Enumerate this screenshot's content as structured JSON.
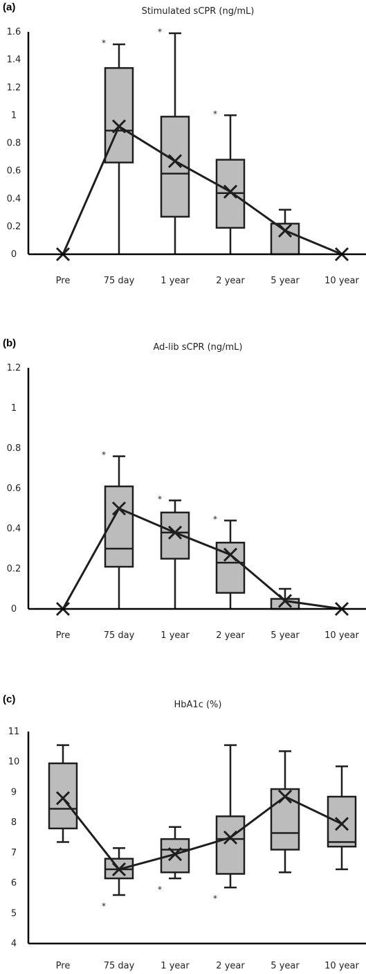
{
  "chart_data": [
    {
      "type": "box",
      "panel_label": "(a)",
      "title": "Stimulated sCPR (ng/mL)",
      "categories": [
        "Pre",
        "75 day",
        "1 year",
        "2 year",
        "5 year",
        "10 year"
      ],
      "ylim": [
        0,
        1.6
      ],
      "yticks": [
        "0",
        "0.2",
        "0.4",
        "0.6",
        "0.8",
        "1",
        "1.2",
        "1.4",
        "1.6"
      ],
      "boxes": [
        {
          "min": 0,
          "q1": 0,
          "median": 0,
          "q3": 0,
          "max": 0,
          "mean": 0,
          "star": ""
        },
        {
          "min": 0,
          "q1": 0.66,
          "median": 0.89,
          "q3": 1.34,
          "max": 1.51,
          "mean": 0.92,
          "star": "*"
        },
        {
          "min": 0,
          "q1": 0.27,
          "median": 0.58,
          "q3": 0.99,
          "max": 1.59,
          "mean": 0.67,
          "star": "*"
        },
        {
          "min": 0,
          "q1": 0.19,
          "median": 0.44,
          "q3": 0.68,
          "max": 1.0,
          "mean": 0.45,
          "star": "*"
        },
        {
          "min": 0,
          "q1": 0,
          "median": 0,
          "q3": 0.22,
          "max": 0.32,
          "mean": 0.17,
          "star": ""
        },
        {
          "min": 0,
          "q1": 0,
          "median": 0,
          "q3": 0,
          "max": 0,
          "mean": 0,
          "star": ""
        }
      ]
    },
    {
      "type": "box",
      "panel_label": "(b)",
      "title": "Ad-lib sCPR (ng/mL)",
      "categories": [
        "Pre",
        "75 day",
        "1 year",
        "2 year",
        "5 year",
        "10 year"
      ],
      "ylim": [
        0,
        1.2
      ],
      "yticks": [
        "0",
        "0.2",
        "0.4",
        "0.6",
        "0.8",
        "1",
        "1.2"
      ],
      "boxes": [
        {
          "min": 0,
          "q1": 0,
          "median": 0,
          "q3": 0,
          "max": 0,
          "mean": 0,
          "star": ""
        },
        {
          "min": 0,
          "q1": 0.21,
          "median": 0.3,
          "q3": 0.61,
          "max": 0.76,
          "mean": 0.5,
          "star": "*"
        },
        {
          "min": 0,
          "q1": 0.25,
          "median": 0.38,
          "q3": 0.48,
          "max": 0.54,
          "mean": 0.38,
          "star": "*"
        },
        {
          "min": 0,
          "q1": 0.08,
          "median": 0.23,
          "q3": 0.33,
          "max": 0.44,
          "mean": 0.27,
          "star": "*"
        },
        {
          "min": 0,
          "q1": 0,
          "median": 0,
          "q3": 0.05,
          "max": 0.1,
          "mean": 0.04,
          "star": ""
        },
        {
          "min": 0,
          "q1": 0,
          "median": 0,
          "q3": 0,
          "max": 0,
          "mean": 0,
          "star": ""
        }
      ]
    },
    {
      "type": "box",
      "panel_label": "(c)",
      "title": "HbA1c (%)",
      "categories": [
        "Pre",
        "75 day",
        "1 year",
        "2 year",
        "5 year",
        "10 year"
      ],
      "ylim": [
        4,
        11
      ],
      "yticks": [
        "4",
        "5",
        "6",
        "7",
        "8",
        "9",
        "10",
        "11"
      ],
      "boxes": [
        {
          "min": 7.35,
          "q1": 7.8,
          "median": 8.45,
          "q3": 9.95,
          "max": 10.55,
          "mean": 8.8,
          "star": ""
        },
        {
          "min": 5.6,
          "q1": 6.15,
          "median": 6.45,
          "q3": 6.8,
          "max": 7.15,
          "mean": 6.45,
          "star": "*"
        },
        {
          "min": 6.15,
          "q1": 6.35,
          "median": 7.1,
          "q3": 7.45,
          "max": 7.85,
          "mean": 6.95,
          "star": "*"
        },
        {
          "min": 5.85,
          "q1": 6.3,
          "median": 7.45,
          "q3": 8.2,
          "max": 10.55,
          "mean": 7.5,
          "star": "*"
        },
        {
          "min": 6.35,
          "q1": 7.1,
          "median": 7.65,
          "q3": 9.1,
          "max": 10.35,
          "mean": 8.85,
          "star": ""
        },
        {
          "min": 6.45,
          "q1": 7.2,
          "median": 7.35,
          "q3": 8.85,
          "max": 9.85,
          "mean": 7.95,
          "star": ""
        }
      ]
    }
  ]
}
